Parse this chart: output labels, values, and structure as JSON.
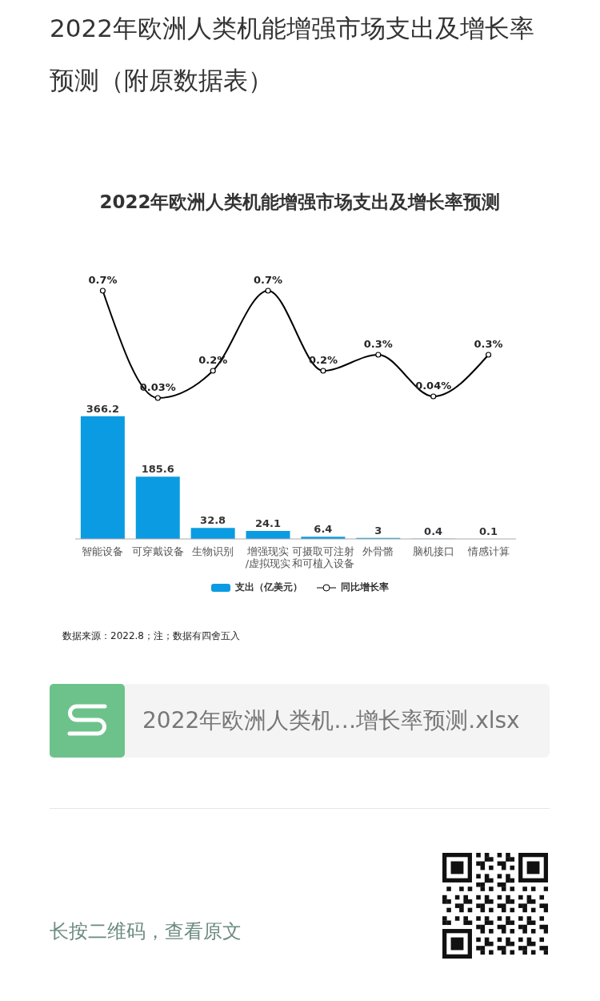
{
  "chart_data": [
    {
      "type": "line",
      "title": "2022年欧洲人类机能增强市场支出及增长率预测（附原数据表）",
      "subtitle": "2022年欧洲人类机能增强市场支出及增长率预测",
      "categories": [
        null,
        null,
        null,
        null,
        null,
        null,
        null,
        null
      ],
      "tick_labels": false,
      "marker": "circle",
      "legend": "bottom",
      "series": [
        {
          "name": "同比增长率",
          "color": "#000000",
          "values": [
            0.7,
            0.03,
            0.2,
            0.7,
            0.2,
            0.3,
            0.04,
            0.3
          ],
          "value_labels": [
            "0.7%",
            "0.03%",
            "0.2%",
            "0.7%",
            "0.2%",
            "0.3%",
            "0.04%",
            "0.3%"
          ]
        }
      ]
    },
    {
      "type": "bar",
      "categories": [
        "智能设备",
        "可穿戴设备",
        "生物识别",
        "增强现实\n/虚拟现实",
        "可摄取可注射和可植入设备",
        "外骨骼",
        "脑机接口",
        "情感计算"
      ],
      "tick_labels": "x",
      "legend": "bottom",
      "series": [
        {
          "name": "支出（亿美元）",
          "color": "#0b9be3",
          "values": [
            366.2,
            185.6,
            32.8,
            24.1,
            6.4,
            3,
            0.4,
            0.1
          ],
          "value_labels": [
            "366.2",
            "185.6",
            "32.8",
            "24.1",
            "6.4",
            "3",
            "0.4",
            "0.1"
          ]
        }
      ],
      "annotations": [
        "数据来源：2022.8；注；数据有四舍五入",
        "2022年欧洲人类机…增长率预测.xlsx",
        "长按二维码，查看原文"
      ]
    }
  ]
}
